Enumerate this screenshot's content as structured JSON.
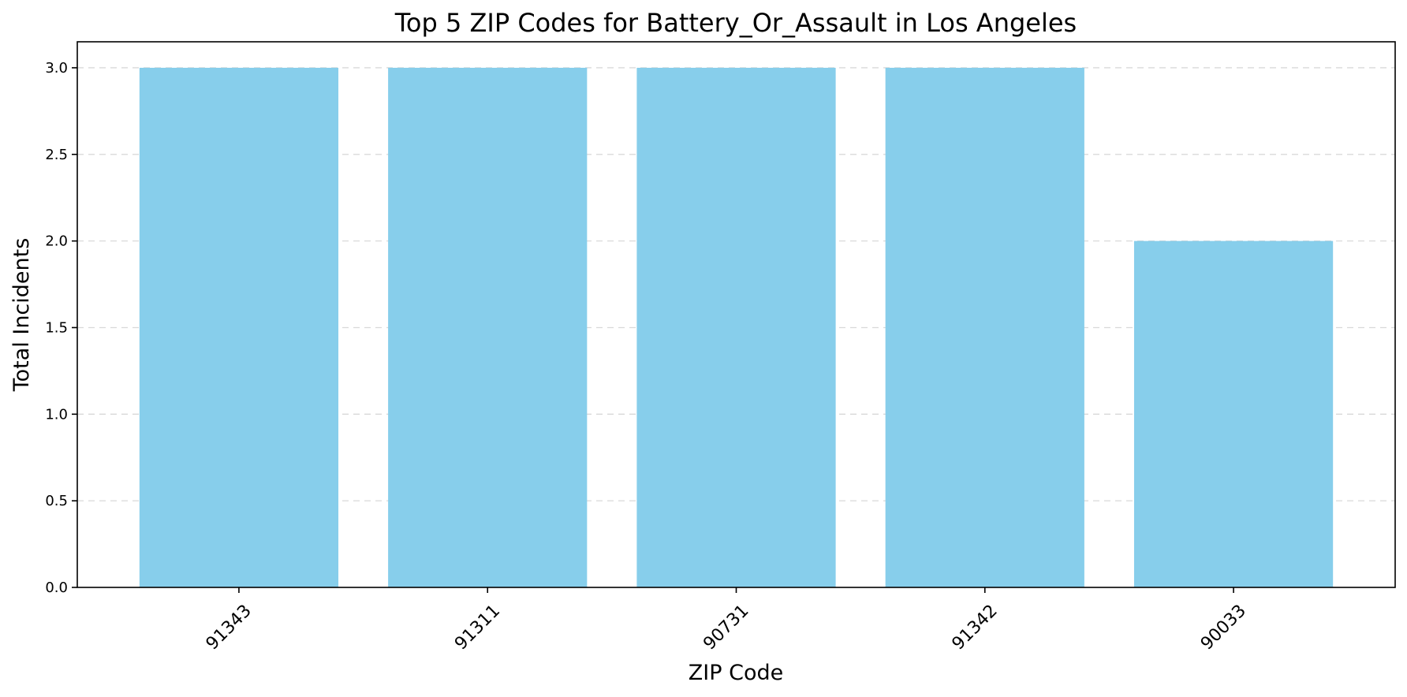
{
  "chart_data": {
    "type": "bar",
    "title": "Top 5 ZIP Codes for Battery_Or_Assault in Los Angeles",
    "xlabel": "ZIP Code",
    "ylabel": "Total Incidents",
    "categories": [
      "91343",
      "91311",
      "90731",
      "91342",
      "90033"
    ],
    "values": [
      3,
      3,
      3,
      3,
      2
    ],
    "ylim": [
      0,
      3.15
    ],
    "yticks": [
      "0.0",
      "0.5",
      "1.0",
      "1.5",
      "2.0",
      "2.5",
      "3.0"
    ],
    "grid": "y-dashed",
    "bar_color": "#87CEEB",
    "xtick_rotation": "45-degree"
  }
}
